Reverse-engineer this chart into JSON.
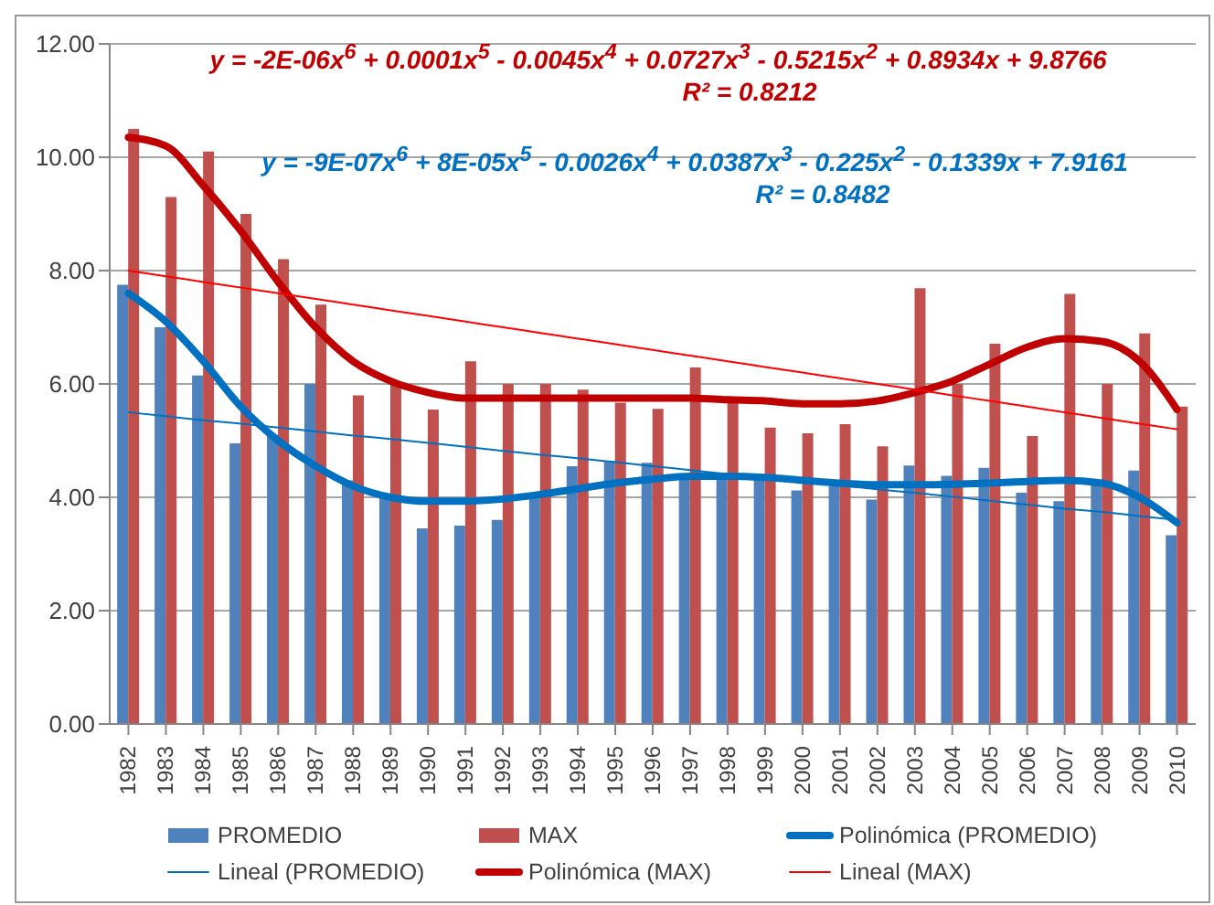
{
  "chart_data": {
    "type": "bar",
    "categories": [
      "1982",
      "1983",
      "1984",
      "1985",
      "1986",
      "1987",
      "1988",
      "1989",
      "1990",
      "1991",
      "1992",
      "1993",
      "1994",
      "1995",
      "1996",
      "1997",
      "1998",
      "1999",
      "2000",
      "2001",
      "2002",
      "2003",
      "2004",
      "2005",
      "2006",
      "2007",
      "2008",
      "2009",
      "2010"
    ],
    "series": [
      {
        "name": "PROMEDIO",
        "color": "#4f81bd",
        "values": [
          7.75,
          7.0,
          6.15,
          4.95,
          5.1,
          6.0,
          4.3,
          4.05,
          3.45,
          3.5,
          3.6,
          4.05,
          4.55,
          4.64,
          4.61,
          4.35,
          4.33,
          4.33,
          4.12,
          4.2,
          3.96,
          4.56,
          4.38,
          4.52,
          4.08,
          3.93,
          4.27,
          4.47,
          3.33
        ]
      },
      {
        "name": "MAX",
        "color": "#c0504d",
        "values": [
          10.5,
          9.3,
          10.1,
          9.0,
          8.2,
          7.4,
          5.8,
          6.0,
          5.55,
          6.4,
          6.0,
          6.0,
          5.9,
          5.67,
          5.56,
          6.29,
          5.67,
          5.23,
          5.13,
          5.29,
          4.9,
          7.69,
          6.0,
          6.71,
          5.08,
          7.59,
          6.0,
          6.89,
          5.6
        ]
      },
      {
        "name": "Polinómica (PROMEDIO)",
        "color": "#0070c0",
        "type": "line",
        "values": [
          7.6,
          7.1,
          6.4,
          5.6,
          5.0,
          4.55,
          4.2,
          4.0,
          3.93,
          3.93,
          3.97,
          4.05,
          4.15,
          4.25,
          4.32,
          4.37,
          4.37,
          4.35,
          4.3,
          4.25,
          4.22,
          4.22,
          4.23,
          4.25,
          4.28,
          4.3,
          4.25,
          4.0,
          3.55
        ]
      },
      {
        "name": "Lineal (PROMEDIO)",
        "color": "#0070c0",
        "type": "line",
        "values": [
          5.5,
          5.43,
          5.36,
          5.3,
          5.23,
          5.16,
          5.09,
          5.03,
          4.96,
          4.89,
          4.82,
          4.75,
          4.69,
          4.62,
          4.55,
          4.48,
          4.41,
          4.35,
          4.28,
          4.21,
          4.14,
          4.08,
          4.01,
          3.94,
          3.87,
          3.8,
          3.74,
          3.67,
          3.6
        ]
      },
      {
        "name": "Polinómica (MAX)",
        "color": "#c00000",
        "type": "line",
        "values": [
          10.35,
          10.2,
          9.5,
          8.7,
          7.8,
          7.0,
          6.4,
          6.05,
          5.85,
          5.75,
          5.75,
          5.75,
          5.75,
          5.75,
          5.75,
          5.75,
          5.72,
          5.7,
          5.65,
          5.65,
          5.7,
          5.85,
          6.05,
          6.35,
          6.65,
          6.8,
          6.75,
          6.4,
          5.55
        ]
      },
      {
        "name": "Lineal (MAX)",
        "color": "#ff0000",
        "type": "line",
        "values": [
          8.0,
          7.9,
          7.8,
          7.7,
          7.6,
          7.5,
          7.4,
          7.3,
          7.2,
          7.1,
          7.0,
          6.9,
          6.8,
          6.7,
          6.6,
          6.5,
          6.4,
          6.3,
          6.2,
          6.1,
          6.0,
          5.9,
          5.8,
          5.7,
          5.6,
          5.5,
          5.4,
          5.3,
          5.2
        ]
      }
    ],
    "annotations": [
      "y = -2E-06x$^{6}$ + 0.0001x$^{5}$ - 0.0045x$^{4}$ + 0.0727x$^{3}$ - 0.5215x$^{2}$ + 0.8934x + 9.8766",
      "R² = 0.8212",
      "y = -9E-07x$^{6}$ + 8E-05x$^{5}$ - 0.0026x$^{4}$ + 0.0387x$^{3}$ - 0.225x$^{2}$ - 0.1339x + 7.9161",
      "R² = 0.8482"
    ],
    "ylim": [
      0,
      12
    ],
    "yticks": [
      {
        "value": 0,
        "label": "0.00"
      },
      {
        "value": 2,
        "label": "2.00"
      },
      {
        "value": 4,
        "label": "4.00"
      },
      {
        "value": 6,
        "label": "6.00"
      },
      {
        "value": 8,
        "label": "8.00"
      },
      {
        "value": 10,
        "label": "10.00"
      },
      {
        "value": 12,
        "label": "12.00"
      }
    ],
    "grid": "y",
    "legend": "bottom",
    "marker": "none",
    "line_style": "solid"
  }
}
